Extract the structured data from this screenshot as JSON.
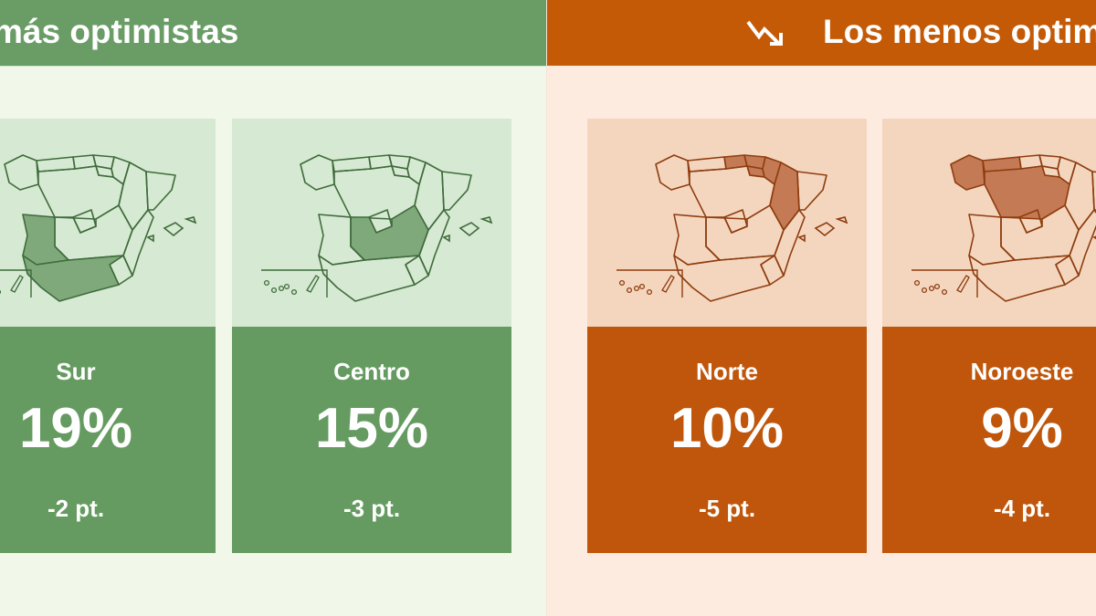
{
  "left_header": {
    "title": "más optimistas",
    "color": "#6a9d66"
  },
  "right_header": {
    "title": "Los menos optimistas",
    "icon": "trend-down-arrow-icon",
    "color": "#c45a06"
  },
  "cards": [
    {
      "name": "Sur",
      "percent": "19%",
      "change": "-2 pt.",
      "group": "optimistas"
    },
    {
      "name": "Centro",
      "percent": "15%",
      "change": "-3 pt.",
      "group": "optimistas"
    },
    {
      "name": "Norte",
      "percent": "10%",
      "change": "-5 pt.",
      "group": "menos optimistas"
    },
    {
      "name": "Noroeste",
      "percent": "9%",
      "change": "-4 pt.",
      "group": "menos optimistas"
    }
  ],
  "colors": {
    "green": "#659b61",
    "green_map": "#d6e9d2",
    "orange": "#bf560b",
    "orange_map": "#f4d6bf"
  }
}
